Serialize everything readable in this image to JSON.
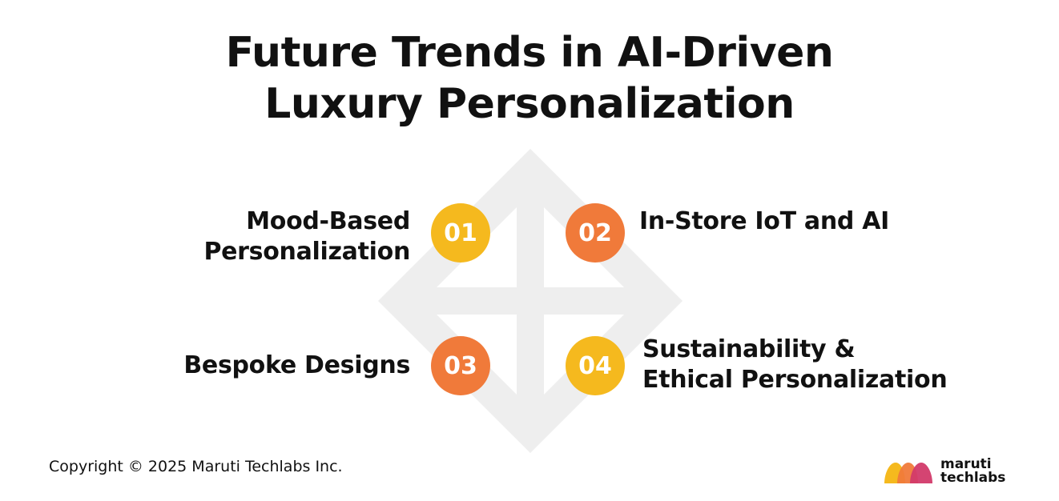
{
  "title": {
    "line1": "Future Trends in AI-Driven",
    "line2": "Luxury Personalization"
  },
  "items": [
    {
      "number": "01",
      "label_lines": [
        "Mood-Based",
        "Personalization"
      ],
      "color": "#F5B91E"
    },
    {
      "number": "02",
      "label_lines": [
        "In-Store IoT and AI"
      ],
      "color": "#F07A3A"
    },
    {
      "number": "03",
      "label_lines": [
        "Bespoke Designs"
      ],
      "color": "#F07A3A"
    },
    {
      "number": "04",
      "label_lines": [
        "Sustainability &",
        "Ethical Personalization"
      ],
      "color": "#F5B91E"
    }
  ],
  "background_shape_color": "#EEEEEE",
  "footer": {
    "copyright": "Copyright © 2025 Maruti Techlabs Inc."
  },
  "logo": {
    "line1": "maruti",
    "line2": "techlabs",
    "icon": "maruti-techlabs-logo-icon",
    "colors": [
      "#F5B91E",
      "#F07A3A",
      "#D23A6A"
    ]
  }
}
